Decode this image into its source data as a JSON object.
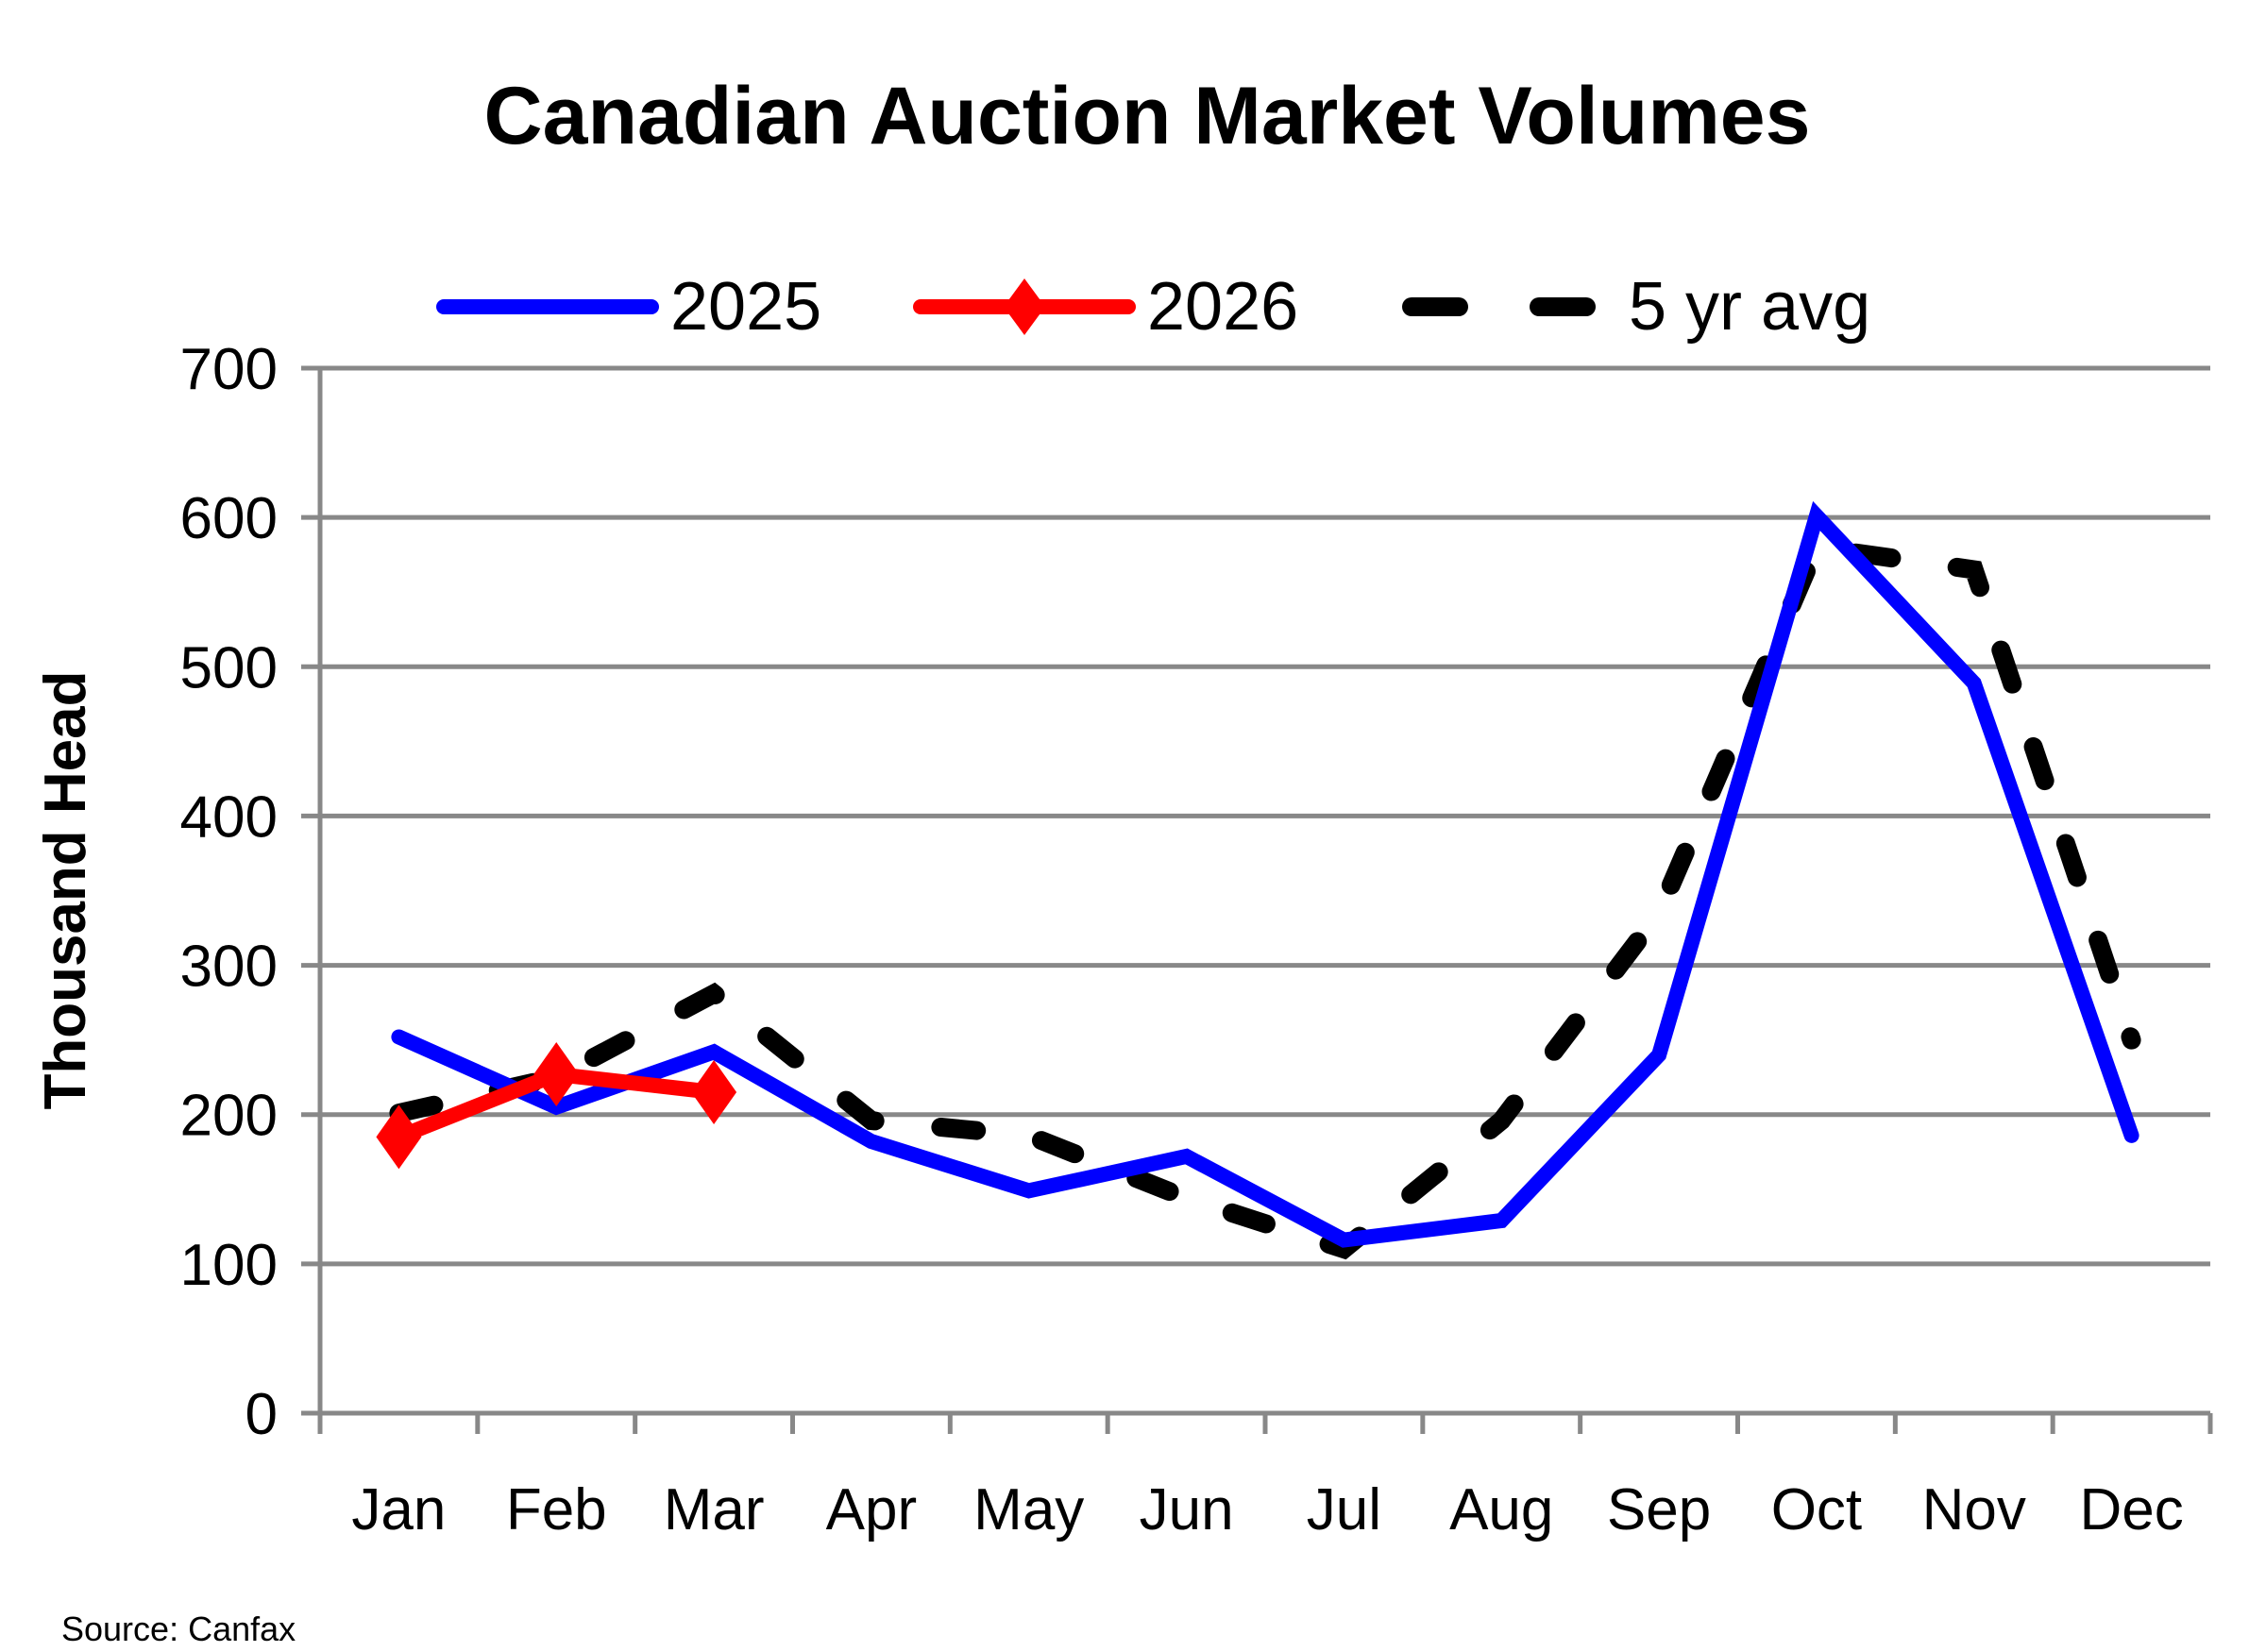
{
  "chart_data": {
    "type": "line",
    "title": "Canadian Auction Market Volumes",
    "ylabel": "Thousand Head",
    "xlabel": "",
    "source": "Source: Canfax",
    "categories": [
      "Jan",
      "Feb",
      "Mar",
      "Apr",
      "May",
      "Jun",
      "Jul",
      "Aug",
      "Sep",
      "Oct",
      "Nov",
      "Dec"
    ],
    "ylim": [
      0,
      700
    ],
    "yticks": [
      0,
      100,
      200,
      300,
      400,
      500,
      600,
      700
    ],
    "grid": true,
    "legend_position": "top",
    "series": [
      {
        "name": "2025",
        "color": "#0000ff",
        "style": "solid",
        "marker": "none",
        "values": [
          252,
          205,
          242,
          182,
          149,
          172,
          116,
          129,
          240,
          601,
          489,
          186
        ]
      },
      {
        "name": "2026",
        "color": "#ff0000",
        "style": "solid",
        "marker": "diamond",
        "values": [
          185,
          227,
          215,
          null,
          null,
          null,
          null,
          null,
          null,
          null,
          null,
          null
        ]
      },
      {
        "name": "5 yr avg",
        "color": "#000000",
        "style": "dashed",
        "marker": "none",
        "values": [
          201,
          225,
          281,
          196,
          186,
          144,
          110,
          196,
          335,
          580,
          565,
          250
        ]
      }
    ]
  }
}
